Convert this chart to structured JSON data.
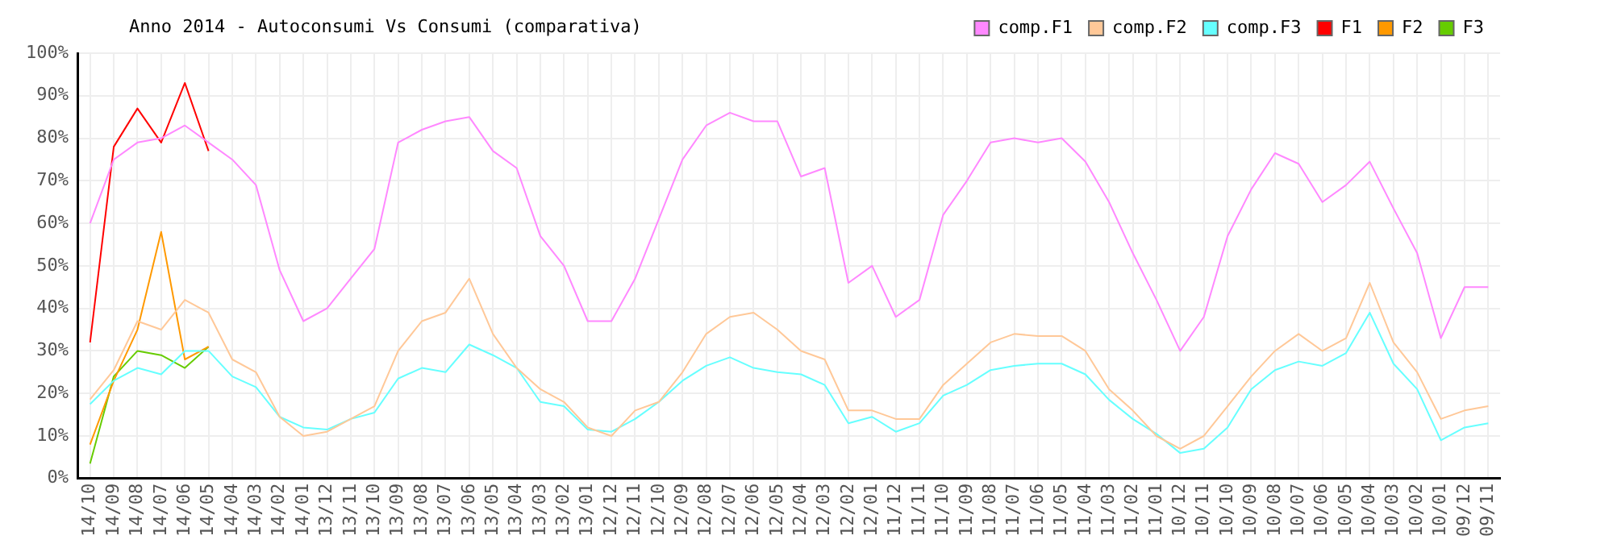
{
  "chart_data": {
    "type": "line",
    "title": "Anno 2014 - Autoconsumi Vs Consumi (comparativa)",
    "categories": [
      "14/10",
      "14/09",
      "14/08",
      "14/07",
      "14/06",
      "14/05",
      "14/04",
      "14/03",
      "14/02",
      "14/01",
      "13/12",
      "13/11",
      "13/10",
      "13/09",
      "13/08",
      "13/07",
      "13/06",
      "13/05",
      "13/04",
      "13/03",
      "13/02",
      "13/01",
      "12/12",
      "12/11",
      "12/10",
      "12/09",
      "12/08",
      "12/07",
      "12/06",
      "12/05",
      "12/04",
      "12/03",
      "12/02",
      "12/01",
      "11/12",
      "11/11",
      "11/10",
      "11/09",
      "11/08",
      "11/07",
      "11/06",
      "11/05",
      "11/04",
      "11/03",
      "11/02",
      "11/01",
      "10/12",
      "10/11",
      "10/10",
      "10/09",
      "10/08",
      "10/07",
      "10/06",
      "10/05",
      "10/04",
      "10/03",
      "10/02",
      "10/01",
      "09/12",
      "09/11"
    ],
    "series": [
      {
        "name": "comp.F1",
        "color": "#ff88ff",
        "values": [
          60,
          75,
          79,
          80,
          83,
          79,
          75,
          69,
          49,
          37,
          40,
          47,
          54,
          79,
          82,
          84,
          85,
          77,
          73,
          57,
          50,
          37,
          37,
          47,
          61,
          75,
          83,
          86,
          84,
          84,
          71,
          73,
          46,
          50,
          38,
          42,
          62,
          70,
          79,
          80,
          79,
          80,
          74.5,
          65,
          53,
          42,
          30,
          38,
          57,
          68,
          76.5,
          74,
          65,
          69,
          74.5,
          63.5,
          53,
          33,
          45,
          45
        ]
      },
      {
        "name": "comp.F2",
        "color": "#ffc898",
        "values": [
          18.6,
          25.5,
          37,
          35,
          42,
          39,
          28,
          25,
          14.5,
          10,
          11,
          14,
          17,
          30,
          37,
          39,
          47,
          34,
          26,
          21,
          18,
          12,
          10,
          16,
          18,
          25,
          34,
          38,
          39,
          35,
          30,
          28,
          16,
          16,
          14,
          14,
          22,
          27,
          32,
          34,
          33.5,
          33.5,
          30,
          21,
          16,
          10,
          7,
          10,
          17,
          24,
          30,
          34,
          30,
          33,
          46,
          32,
          25,
          14,
          16,
          17
        ]
      },
      {
        "name": "comp.F3",
        "color": "#66ffff",
        "values": [
          17.5,
          23,
          26,
          24.5,
          30,
          30,
          24,
          21.5,
          14.5,
          12,
          11.5,
          14,
          15.5,
          23.5,
          26,
          25,
          31.5,
          29,
          26,
          18,
          17,
          11.5,
          11,
          14,
          18,
          23,
          26.5,
          28.5,
          26,
          25,
          24.5,
          22,
          13,
          14.5,
          11,
          13,
          19.5,
          22,
          25.5,
          26.5,
          27,
          27,
          24.5,
          18.5,
          14,
          10.5,
          6,
          7,
          12,
          21,
          25.5,
          27.5,
          26.5,
          29.5,
          39,
          27,
          21,
          9,
          12,
          13
        ]
      },
      {
        "name": "F1",
        "color": "#ff0000",
        "values": [
          32,
          78,
          87,
          79,
          93,
          77,
          null,
          null,
          null,
          null,
          null,
          null,
          null,
          null,
          null,
          null,
          null,
          null,
          null,
          null,
          null,
          null,
          null,
          null,
          null,
          null,
          null,
          null,
          null,
          null,
          null,
          null,
          null,
          null,
          null,
          null,
          null,
          null,
          null,
          null,
          null,
          null,
          null,
          null,
          null,
          null,
          null,
          null,
          null,
          null,
          null,
          null,
          null,
          null,
          null,
          null,
          null,
          null,
          null,
          null
        ]
      },
      {
        "name": "F2",
        "color": "#ff9900",
        "values": [
          8,
          23,
          35,
          58,
          28,
          31,
          null,
          null,
          null,
          null,
          null,
          null,
          null,
          null,
          null,
          null,
          null,
          null,
          null,
          null,
          null,
          null,
          null,
          null,
          null,
          null,
          null,
          null,
          null,
          null,
          null,
          null,
          null,
          null,
          null,
          null,
          null,
          null,
          null,
          null,
          null,
          null,
          null,
          null,
          null,
          null,
          null,
          null,
          null,
          null,
          null,
          null,
          null,
          null,
          null,
          null,
          null,
          null,
          null,
          null
        ]
      },
      {
        "name": "F3",
        "color": "#66cc00",
        "values": [
          3.5,
          24,
          30,
          29,
          26,
          31,
          null,
          null,
          null,
          null,
          null,
          null,
          null,
          null,
          null,
          null,
          null,
          null,
          null,
          null,
          null,
          null,
          null,
          null,
          null,
          null,
          null,
          null,
          null,
          null,
          null,
          null,
          null,
          null,
          null,
          null,
          null,
          null,
          null,
          null,
          null,
          null,
          null,
          null,
          null,
          null,
          null,
          null,
          null,
          null,
          null,
          null,
          null,
          null,
          null,
          null,
          null,
          null,
          null,
          null
        ]
      }
    ],
    "ylim": [
      0,
      100
    ],
    "yticks": [
      {
        "value": 0,
        "label": "0%"
      },
      {
        "value": 10,
        "label": "10%"
      },
      {
        "value": 20,
        "label": "20%"
      },
      {
        "value": 30,
        "label": "30%"
      },
      {
        "value": 40,
        "label": "40%"
      },
      {
        "value": 50,
        "label": "50%"
      },
      {
        "value": 60,
        "label": "60%"
      },
      {
        "value": 70,
        "label": "70%"
      },
      {
        "value": 80,
        "label": "80%"
      },
      {
        "value": 90,
        "label": "90%"
      },
      {
        "value": 100,
        "label": "100%"
      }
    ],
    "grid": true,
    "legend": "top right",
    "marker": "none"
  }
}
